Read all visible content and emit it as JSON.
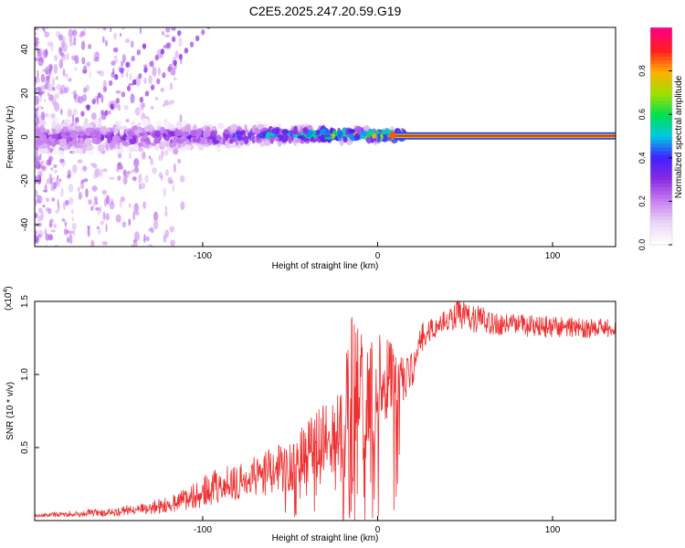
{
  "title": "C2E5.2025.247.20.59.G19",
  "chart_data": [
    {
      "type": "heatmap",
      "title": "C2E5.2025.247.20.59.G19",
      "xlabel": "Height of straight line (km)",
      "ylabel": "Frequency (Hz)",
      "xlim": [
        -196,
        136
      ],
      "ylim": [
        -50,
        50
      ],
      "x_ticks": [
        -100,
        0,
        100
      ],
      "x_tick_labels": [
        "-100",
        "0",
        "100"
      ],
      "y_ticks": [
        -40,
        -20,
        0,
        20,
        40
      ],
      "y_tick_labels": [
        "-40",
        "-20",
        "0",
        "20",
        "40"
      ],
      "colorbar": {
        "label": "Normalized spectral amplitude",
        "range": [
          0,
          1
        ],
        "ticks": [
          0.0,
          0.2,
          0.4,
          0.6,
          0.8
        ],
        "tick_labels": [
          "0.0",
          "0.2",
          "0.4",
          "0.6",
          "0.8"
        ],
        "colors": [
          "#ffffff",
          "#e9d3f5",
          "#c77df0",
          "#8a2be2",
          "#4020ff",
          "#00c8e8",
          "#00e050",
          "#a0e000",
          "#ffb000",
          "#ff2020",
          "#ff0080"
        ]
      },
      "ridge": [
        {
          "x": -190,
          "freq": 0,
          "amp": 0.28
        },
        {
          "x": -150,
          "freq": 0,
          "amp": 0.3
        },
        {
          "x": -100,
          "freq": 0,
          "amp": 0.38
        },
        {
          "x": -60,
          "freq": 1,
          "amp": 0.5
        },
        {
          "x": -40,
          "freq": 1,
          "amp": 0.6
        },
        {
          "x": -25,
          "freq": 1,
          "amp": 0.8
        },
        {
          "x": -10,
          "freq": 1,
          "amp": 0.85
        },
        {
          "x": 15,
          "freq": 0.5,
          "amp": 0.95
        },
        {
          "x": 60,
          "freq": 0.5,
          "amp": 0.95
        },
        {
          "x": 100,
          "freq": 0.5,
          "amp": 0.95
        },
        {
          "x": 136,
          "freq": 0.5,
          "amp": 0.7
        }
      ]
    },
    {
      "type": "line",
      "xlabel": "Height of straight line (km)",
      "ylabel": "SNR (10 * v/v)",
      "scale_label": "(x10",
      "scale_exponent": "4",
      "xlim": [
        -196,
        136
      ],
      "ylim": [
        0,
        15000
      ],
      "x_ticks": [
        -100,
        0,
        100
      ],
      "x_tick_labels": [
        "-100",
        "0",
        "100"
      ],
      "y_ticks": [
        5000,
        10000,
        15000
      ],
      "y_tick_labels": [
        "0.5",
        "1.0",
        "1.5"
      ],
      "series_color": "#ee3030",
      "envelope": [
        {
          "x": -196,
          "lo": 200,
          "hi": 500
        },
        {
          "x": -150,
          "lo": 300,
          "hi": 900
        },
        {
          "x": -120,
          "lo": 500,
          "hi": 1600
        },
        {
          "x": -100,
          "lo": 900,
          "hi": 3200
        },
        {
          "x": -75,
          "lo": 1500,
          "hi": 4200
        },
        {
          "x": -50,
          "lo": 2000,
          "hi": 5500
        },
        {
          "x": -35,
          "lo": 2800,
          "hi": 7500
        },
        {
          "x": -20,
          "lo": 3500,
          "hi": 9500
        },
        {
          "x": -15,
          "lo": 500,
          "hi": 14000
        },
        {
          "x": -5,
          "lo": 5000,
          "hi": 13000
        },
        {
          "x": 10,
          "lo": 7500,
          "hi": 12500
        },
        {
          "x": 20,
          "lo": 9000,
          "hi": 11500
        },
        {
          "x": 25,
          "lo": 11500,
          "hi": 13500
        },
        {
          "x": 35,
          "lo": 12800,
          "hi": 14200
        },
        {
          "x": 45,
          "lo": 13000,
          "hi": 15200
        },
        {
          "x": 70,
          "lo": 12600,
          "hi": 14200
        },
        {
          "x": 100,
          "lo": 12500,
          "hi": 14000
        },
        {
          "x": 136,
          "lo": 12400,
          "hi": 13800
        }
      ]
    }
  ]
}
